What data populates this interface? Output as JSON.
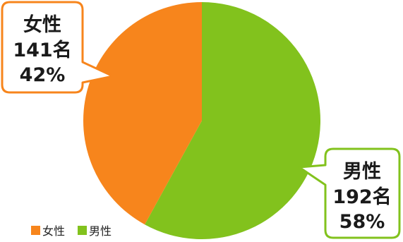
{
  "chart_data": {
    "type": "pie",
    "slices": [
      {
        "label": "男性",
        "count": 192,
        "count_label": "192名",
        "percent_label": "58%",
        "value": 58,
        "color": "#82c21d"
      },
      {
        "label": "女性",
        "count": 141,
        "count_label": "141名",
        "percent_label": "42%",
        "value": 42,
        "color": "#f7851c"
      }
    ],
    "start_angle_deg": 0,
    "direction": "clockwise",
    "legend_position": "bottom-left"
  },
  "legend": [
    {
      "label": "女性",
      "color": "#f7851c"
    },
    {
      "label": "男性",
      "color": "#82c21d"
    }
  ],
  "callouts": {
    "female": {
      "line1": "女性",
      "line2": "141名",
      "line3": "42%",
      "border_color": "#f7851c"
    },
    "male": {
      "line1": "男性",
      "line2": "192名",
      "line3": "58%",
      "border_color": "#82c21d"
    }
  }
}
